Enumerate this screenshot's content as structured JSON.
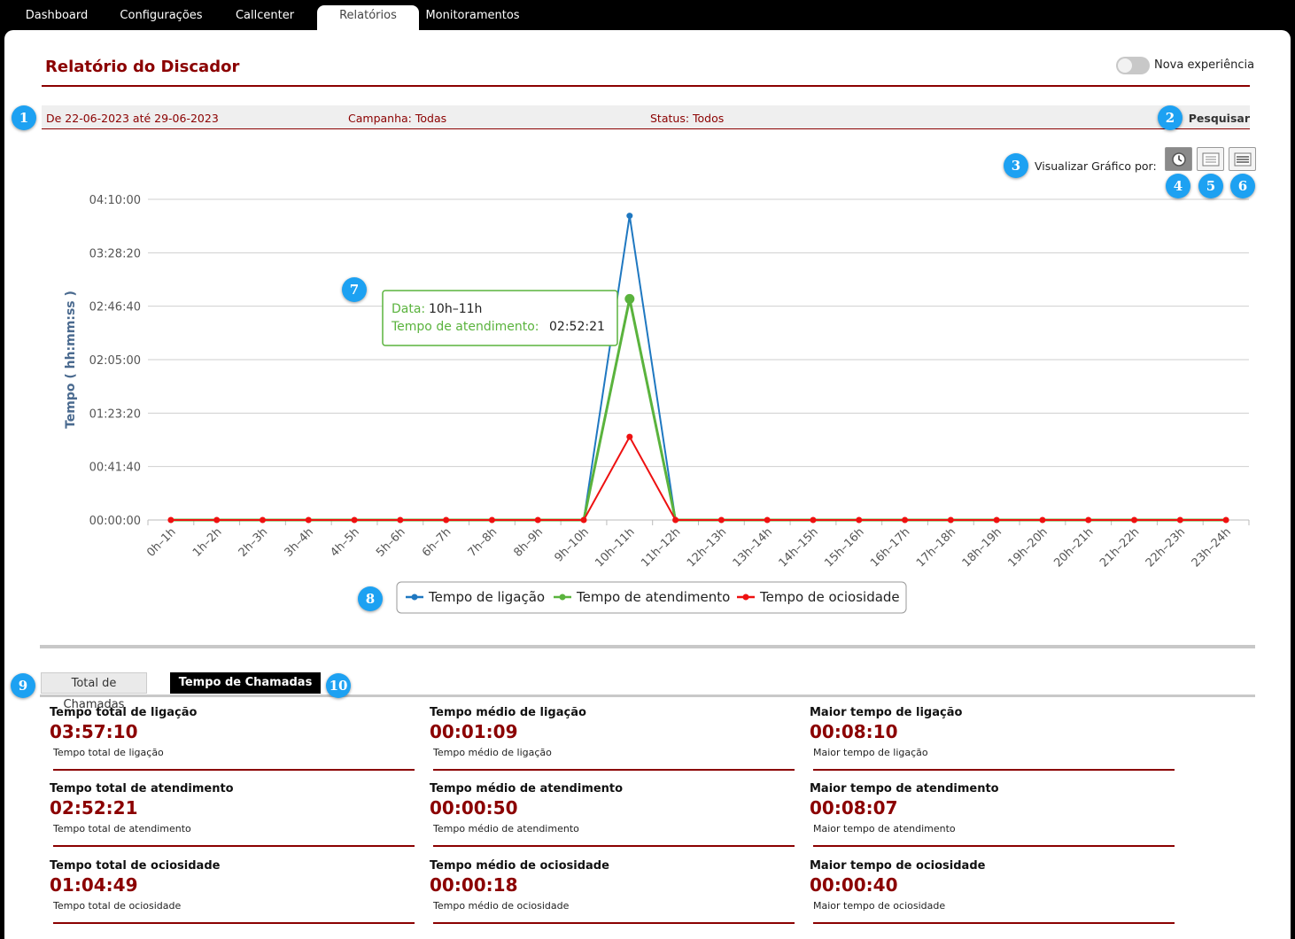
{
  "nav": {
    "tabs": [
      {
        "label": "Dashboard"
      },
      {
        "label": "Configurações"
      },
      {
        "label": "Callcenter"
      },
      {
        "label": "Relatórios"
      },
      {
        "label": "Monitoramentos"
      }
    ],
    "active": "Relatórios"
  },
  "header": {
    "title": "Relatório do Discador",
    "toggle_label": "Nova experiência",
    "toggle_on": false
  },
  "filters": {
    "date_range": "De 22-06-2023 até 29-06-2023",
    "campaign": "Campanha: Todas",
    "status": "Status: Todos",
    "search_label": "Pesquisar"
  },
  "view_by": {
    "label": "Visualizar Gráfico por:",
    "options": [
      "clock-icon",
      "list-view-icon",
      "table-view-icon"
    ],
    "active": 0
  },
  "badges": [
    "1",
    "2",
    "3",
    "4",
    "5",
    "6",
    "7",
    "8",
    "9",
    "10"
  ],
  "colors": {
    "accent": "#8b0000",
    "badge": "#1da1f2",
    "series_ligacao": "#1f78c1",
    "series_atendimento": "#5ab33d",
    "series_ociosidade": "#ee1111"
  },
  "chart_data": {
    "type": "line",
    "ylabel": "Tempo ( hh:mm:ss )",
    "yticks": [
      "00:00:00",
      "00:41:40",
      "01:23:20",
      "02:05:00",
      "02:46:40",
      "03:28:20",
      "04:10:00"
    ],
    "ylim_seconds": [
      0,
      15000
    ],
    "categories": [
      "0h–1h",
      "1h–2h",
      "2h–3h",
      "3h–4h",
      "4h–5h",
      "5h–6h",
      "6h–7h",
      "7h–8h",
      "8h–9h",
      "9h–10h",
      "10h–11h",
      "11h–12h",
      "12h–13h",
      "13h–14h",
      "14h–15h",
      "15h–16h",
      "16h–17h",
      "17h–18h",
      "18h–19h",
      "19h–20h",
      "20h–21h",
      "21h–22h",
      "22h–23h",
      "23h–24h"
    ],
    "series": [
      {
        "name": "Tempo de ligação",
        "color": "#1f78c1",
        "values_seconds": [
          0,
          0,
          0,
          0,
          0,
          0,
          0,
          0,
          0,
          0,
          14230,
          0,
          0,
          0,
          0,
          0,
          0,
          0,
          0,
          0,
          0,
          0,
          0,
          0
        ]
      },
      {
        "name": "Tempo de atendimento",
        "color": "#5ab33d",
        "values_seconds": [
          0,
          0,
          0,
          0,
          0,
          0,
          0,
          0,
          0,
          0,
          10341,
          0,
          0,
          0,
          0,
          0,
          0,
          0,
          0,
          0,
          0,
          0,
          0,
          0
        ]
      },
      {
        "name": "Tempo de ociosidade",
        "color": "#ee1111",
        "values_seconds": [
          0,
          0,
          0,
          0,
          0,
          0,
          0,
          0,
          0,
          0,
          3889,
          0,
          0,
          0,
          0,
          0,
          0,
          0,
          0,
          0,
          0,
          0,
          0,
          0
        ]
      }
    ],
    "tooltip": {
      "data_label": "Data:",
      "data_value": "10h–11h",
      "series_label": "Tempo de atendimento:",
      "series_value": "02:52:21"
    },
    "grid": true,
    "legend": "bottom-center"
  },
  "summary_tabs": [
    {
      "label": "Total de Chamadas"
    },
    {
      "label": "Tempo de Chamadas"
    }
  ],
  "active_summary_tab": 1,
  "stats": [
    {
      "label": "Tempo total de ligação",
      "value": "03:57:10",
      "sub": "Tempo total de ligação"
    },
    {
      "label": "Tempo médio de ligação",
      "value": "00:01:09",
      "sub": "Tempo médio de ligação"
    },
    {
      "label": "Maior tempo de ligação",
      "value": "00:08:10",
      "sub": "Maior tempo de ligação"
    },
    {
      "label": "Tempo total de atendimento",
      "value": "02:52:21",
      "sub": "Tempo total de atendimento"
    },
    {
      "label": "Tempo médio de atendimento",
      "value": "00:00:50",
      "sub": "Tempo médio de atendimento"
    },
    {
      "label": "Maior tempo de atendimento",
      "value": "00:08:07",
      "sub": "Maior tempo de atendimento"
    },
    {
      "label": "Tempo total de ociosidade",
      "value": "01:04:49",
      "sub": "Tempo total de ociosidade"
    },
    {
      "label": "Tempo médio de ociosidade",
      "value": "00:00:18",
      "sub": "Tempo médio de ociosidade"
    },
    {
      "label": "Maior tempo de ociosidade",
      "value": "00:00:40",
      "sub": "Maior tempo de ociosidade"
    }
  ]
}
